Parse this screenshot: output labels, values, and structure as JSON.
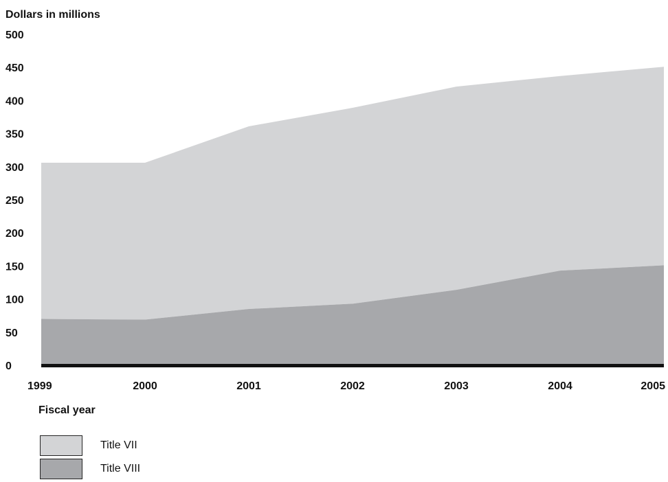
{
  "chart_data": {
    "type": "area",
    "stacked": true,
    "x": [
      "1999",
      "2000",
      "2001",
      "2002",
      "2003",
      "2004",
      "2005"
    ],
    "series": [
      {
        "name": "Title VIII",
        "values": [
          70,
          69,
          85,
          93,
          114,
          143,
          151
        ],
        "color": "#a7a8ab"
      },
      {
        "name": "Title VII",
        "values": [
          236,
          237,
          276,
          296,
          307,
          294,
          300
        ],
        "color": "#d3d4d6"
      }
    ],
    "totals": [
      306,
      306,
      361,
      389,
      421,
      437,
      451
    ],
    "ylabel": "Dollars in millions",
    "xlabel": "Fiscal year",
    "ylim": [
      0,
      500
    ],
    "yticks": [
      0,
      50,
      100,
      150,
      200,
      250,
      300,
      350,
      400,
      450,
      500
    ],
    "grid": false,
    "legend_position": "bottom-left"
  },
  "legend": {
    "items": [
      {
        "label": "Title VII",
        "color": "#d3d4d6"
      },
      {
        "label": "Title VIII",
        "color": "#a7a8ab"
      }
    ]
  }
}
